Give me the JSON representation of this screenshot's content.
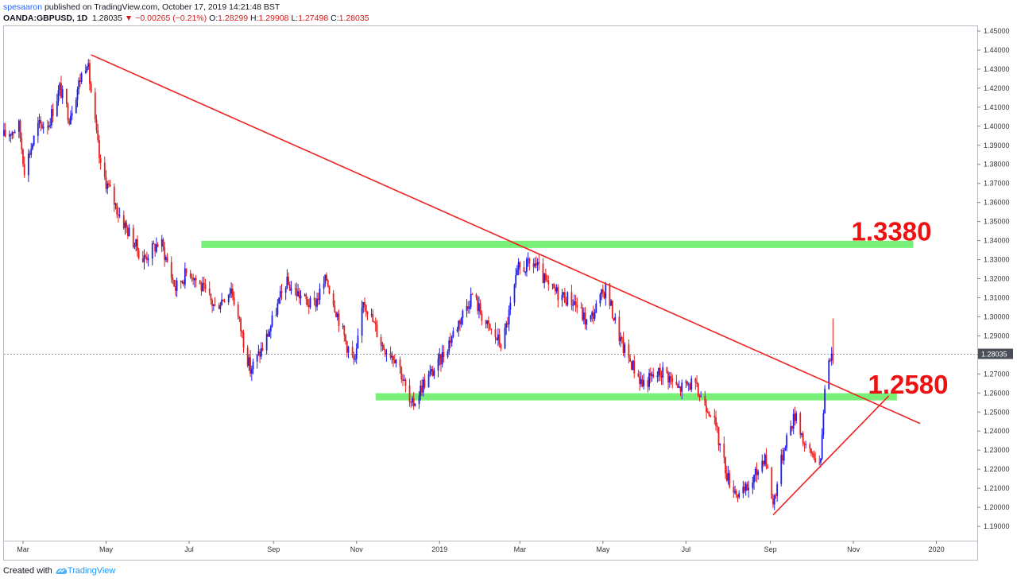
{
  "header": {
    "author": "spesaaron",
    "published": "published on TradingView.com, October 17, 2019 14:21:48 BST",
    "symbol": "OANDA:GBPUSD, 1D",
    "last": "1.28035",
    "change": "▼ −0.00265 (−0.21%)",
    "o_label": "O:",
    "o_value": "1.28299",
    "h_label": "H:",
    "h_value": "1.29908",
    "l_label": "L:",
    "l_value": "1.27498",
    "c_label": "C:",
    "c_value": "1.28035"
  },
  "footer": {
    "created_with": "Created with",
    "brand": "TradingView"
  },
  "chart_data": {
    "type": "candlestick",
    "title": "OANDA:GBPUSD, 1D",
    "ylim": [
      1.1825,
      1.4525
    ],
    "y_ticks": [
      "1.45000",
      "1.44000",
      "1.43000",
      "1.42000",
      "1.41000",
      "1.40000",
      "1.39000",
      "1.38000",
      "1.37000",
      "1.36000",
      "1.35000",
      "1.34000",
      "1.33000",
      "1.32000",
      "1.31000",
      "1.30000",
      "1.29000",
      "1.28000",
      "1.27000",
      "1.26000",
      "1.25000",
      "1.24000",
      "1.23000",
      "1.22000",
      "1.21000",
      "1.20000",
      "1.19000"
    ],
    "x_ticks": [
      "Mar",
      "May",
      "Jul",
      "Sep",
      "Nov",
      "2019",
      "Mar",
      "May",
      "Jul",
      "Sep",
      "Nov",
      "2020"
    ],
    "x_range": [
      "2018-02-15",
      "2020-01-31"
    ],
    "last_price_label": "1.28035",
    "last_price": 1.28035,
    "colors": {
      "up": "#1e1ee6",
      "down": "#e51d1d",
      "level": "#78f078",
      "trend": "#ee2222",
      "label": "#ee1111"
    },
    "price_path": [
      [
        "2018-02-15",
        1.395
      ],
      [
        "2018-02-26",
        1.4
      ],
      [
        "2018-03-02",
        1.378
      ],
      [
        "2018-03-12",
        1.4
      ],
      [
        "2018-03-20",
        1.402
      ],
      [
        "2018-03-28",
        1.42
      ],
      [
        "2018-04-04",
        1.405
      ],
      [
        "2018-04-12",
        1.425
      ],
      [
        "2018-04-17",
        1.435
      ],
      [
        "2018-04-27",
        1.378
      ],
      [
        "2018-05-10",
        1.355
      ],
      [
        "2018-05-28",
        1.33
      ],
      [
        "2018-06-10",
        1.34
      ],
      [
        "2018-06-21",
        1.315
      ],
      [
        "2018-07-01",
        1.325
      ],
      [
        "2018-07-20",
        1.305
      ],
      [
        "2018-08-01",
        1.315
      ],
      [
        "2018-08-15",
        1.272
      ],
      [
        "2018-08-25",
        1.285
      ],
      [
        "2018-09-10",
        1.318
      ],
      [
        "2018-09-30",
        1.305
      ],
      [
        "2018-10-10",
        1.32
      ],
      [
        "2018-10-25",
        1.285
      ],
      [
        "2018-10-31",
        1.275
      ],
      [
        "2018-11-06",
        1.31
      ],
      [
        "2018-11-20",
        1.285
      ],
      [
        "2018-12-01",
        1.278
      ],
      [
        "2018-12-11",
        1.252
      ],
      [
        "2018-12-20",
        1.265
      ],
      [
        "2018-12-31",
        1.275
      ],
      [
        "2019-01-10",
        1.29
      ],
      [
        "2019-01-25",
        1.312
      ],
      [
        "2019-02-05",
        1.295
      ],
      [
        "2019-02-16",
        1.285
      ],
      [
        "2019-02-28",
        1.325
      ],
      [
        "2019-03-12",
        1.328
      ],
      [
        "2019-03-22",
        1.315
      ],
      [
        "2019-04-10",
        1.308
      ],
      [
        "2019-04-20",
        1.296
      ],
      [
        "2019-05-03",
        1.315
      ],
      [
        "2019-05-15",
        1.285
      ],
      [
        "2019-05-30",
        1.265
      ],
      [
        "2019-06-15",
        1.272
      ],
      [
        "2019-06-25",
        1.262
      ],
      [
        "2019-07-05",
        1.265
      ],
      [
        "2019-07-20",
        1.25
      ],
      [
        "2019-08-01",
        1.215
      ],
      [
        "2019-08-10",
        1.205
      ],
      [
        "2019-08-20",
        1.215
      ],
      [
        "2019-08-28",
        1.228
      ],
      [
        "2019-09-03",
        1.202
      ],
      [
        "2019-09-12",
        1.235
      ],
      [
        "2019-09-20",
        1.25
      ],
      [
        "2019-09-27",
        1.23
      ],
      [
        "2019-10-03",
        1.228
      ],
      [
        "2019-10-08",
        1.222
      ],
      [
        "2019-10-11",
        1.265
      ],
      [
        "2019-10-16",
        1.284
      ],
      [
        "2019-10-17",
        1.2803
      ]
    ],
    "levels": [
      {
        "label": "1.3380",
        "value": 1.338,
        "from": "2018-07-10",
        "to": "2019-12-15"
      },
      {
        "label": "1.2580",
        "value": 1.258,
        "from": "2018-11-15",
        "to": "2019-12-03"
      }
    ],
    "trendlines": [
      {
        "from": [
          "2018-04-20",
          1.4375
        ],
        "to": [
          "2019-12-20",
          1.244
        ]
      },
      {
        "from": [
          "2019-09-03",
          1.196
        ],
        "to": [
          "2019-11-27",
          1.2585
        ]
      }
    ]
  }
}
